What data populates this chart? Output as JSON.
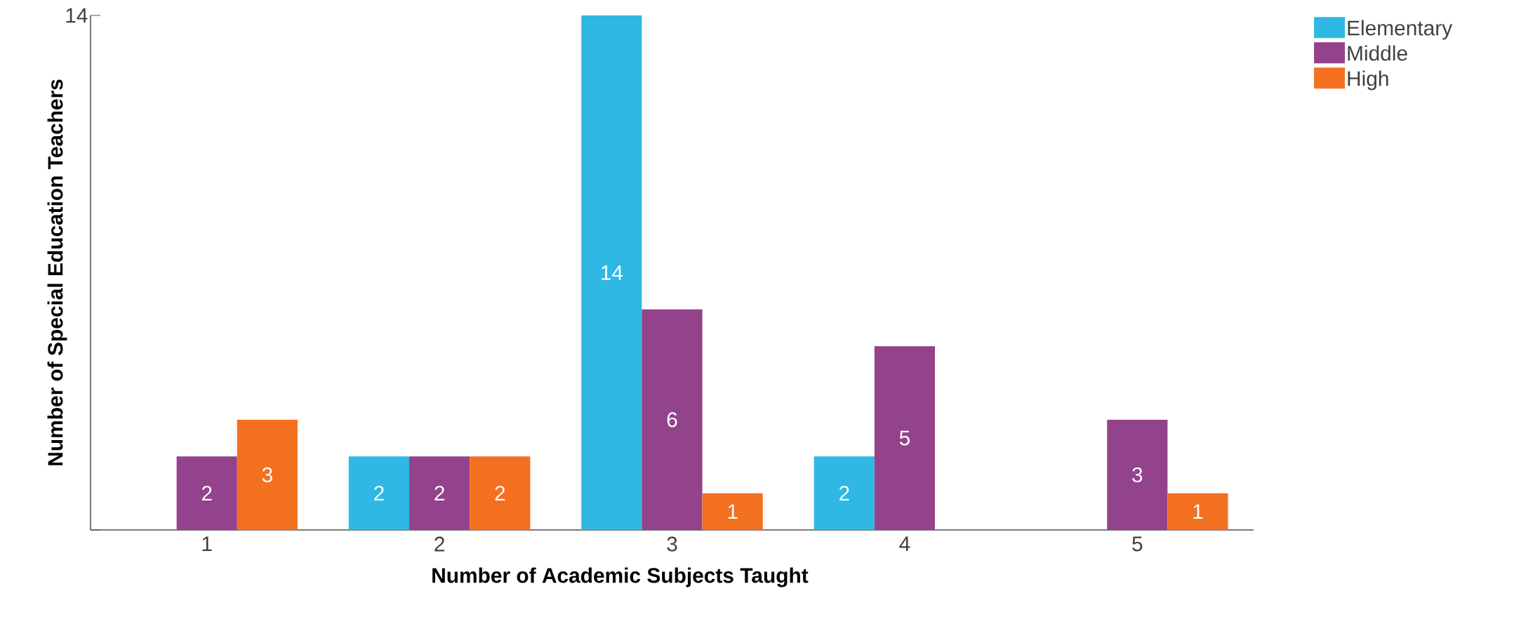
{
  "chart_data": {
    "type": "bar",
    "xlabel": "Number of Academic Subjects Taught",
    "ylabel": "Number of Special Education Teachers",
    "categories": [
      "1",
      "2",
      "3",
      "4",
      "5"
    ],
    "series": [
      {
        "name": "Elementary",
        "color": "#2eb8e3",
        "values": [
          null,
          2,
          14,
          2,
          null
        ]
      },
      {
        "name": "Middle",
        "color": "#93438b",
        "values": [
          2,
          2,
          6,
          5,
          3
        ]
      },
      {
        "name": "High",
        "color": "#f37021",
        "values": [
          3,
          2,
          1,
          null,
          1
        ]
      }
    ],
    "ylim": [
      0,
      14
    ],
    "yticks": [
      {
        "value": 0,
        "label": null
      },
      14
    ],
    "data_labels": true,
    "legend": "top right"
  }
}
